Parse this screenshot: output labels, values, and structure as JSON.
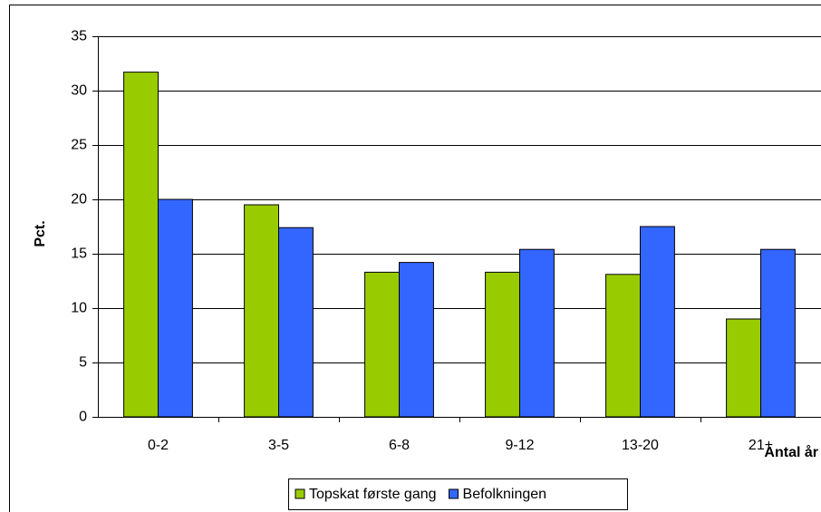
{
  "chart_data": {
    "type": "bar",
    "categories": [
      "0-2",
      "3-5",
      "6-8",
      "9-12",
      "13-20",
      "21+"
    ],
    "series": [
      {
        "name": "Topskat første gang",
        "color": "#99cc00",
        "values": [
          31.7,
          19.5,
          13.3,
          13.3,
          13.1,
          9.0
        ]
      },
      {
        "name": "Befolkningen",
        "color": "#3366ff",
        "values": [
          20.0,
          17.4,
          14.2,
          15.4,
          17.5,
          15.4
        ]
      }
    ],
    "ylabel": "Pct.",
    "xlabel": "Antal år",
    "ylim": [
      0,
      35
    ],
    "yticks": [
      0,
      5,
      10,
      15,
      20,
      25,
      30,
      35
    ],
    "grid": true,
    "legend": "bottom"
  }
}
